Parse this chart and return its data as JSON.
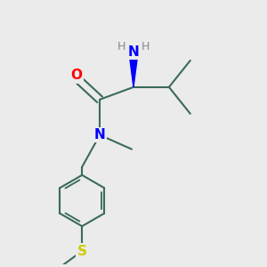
{
  "background_color": "#ebebeb",
  "bond_color": "#3a6b5a",
  "bond_width": 1.5,
  "atom_colors": {
    "O": "#ff0000",
    "N": "#0000ff",
    "S": "#cccc00",
    "NH2_H": "#888888",
    "wedge": "#0000ff"
  },
  "figsize": [
    3.0,
    3.0
  ],
  "dpi": 100
}
